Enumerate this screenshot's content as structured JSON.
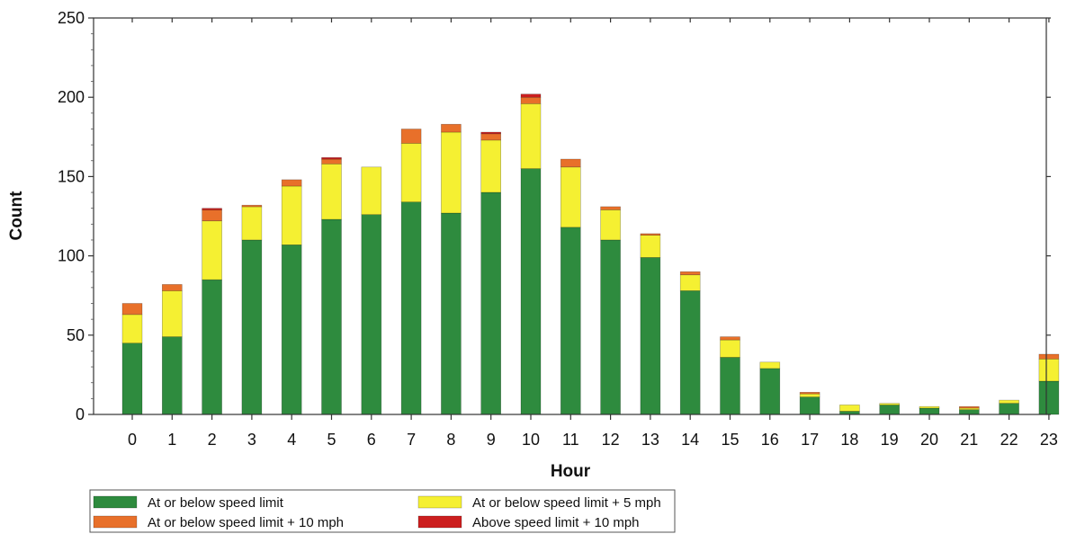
{
  "chart_data": {
    "type": "bar",
    "stacked": true,
    "title": "",
    "xlabel": "Hour",
    "ylabel": "Count",
    "ylim": [
      0,
      250
    ],
    "yticks": [
      0,
      50,
      100,
      150,
      200,
      250
    ],
    "categories": [
      "0",
      "1",
      "2",
      "3",
      "4",
      "5",
      "6",
      "7",
      "8",
      "9",
      "10",
      "11",
      "12",
      "13",
      "14",
      "15",
      "16",
      "17",
      "18",
      "19",
      "20",
      "21",
      "22",
      "23"
    ],
    "grid": false,
    "legend_position": "bottom",
    "series": [
      {
        "name": "At or below speed limit",
        "color": "#2e8b3e",
        "values": [
          45,
          49,
          85,
          110,
          107,
          123,
          126,
          134,
          127,
          140,
          155,
          118,
          110,
          99,
          78,
          36,
          29,
          11,
          2,
          6,
          4,
          3,
          7,
          21
        ]
      },
      {
        "name": "At or below speed limit + 5 mph",
        "color": "#f5f032",
        "values": [
          18,
          29,
          37,
          21,
          37,
          35,
          30,
          37,
          51,
          33,
          41,
          38,
          19,
          14,
          10,
          11,
          4,
          2,
          4,
          1,
          1,
          1,
          2,
          14
        ]
      },
      {
        "name": "At or below speed limit + 10 mph",
        "color": "#e8702a",
        "values": [
          7,
          4,
          7,
          1,
          4,
          3,
          0,
          9,
          5,
          4,
          4,
          5,
          2,
          1,
          2,
          2,
          0,
          1,
          0,
          0,
          0,
          1,
          0,
          3
        ]
      },
      {
        "name": "Above speed limit + 10 mph",
        "color": "#cc1f1f",
        "values": [
          0,
          0,
          1,
          0,
          0,
          1,
          0,
          0,
          0,
          1,
          2,
          0,
          0,
          0,
          0,
          0,
          0,
          0,
          0,
          0,
          0,
          0,
          0,
          0
        ]
      }
    ]
  }
}
